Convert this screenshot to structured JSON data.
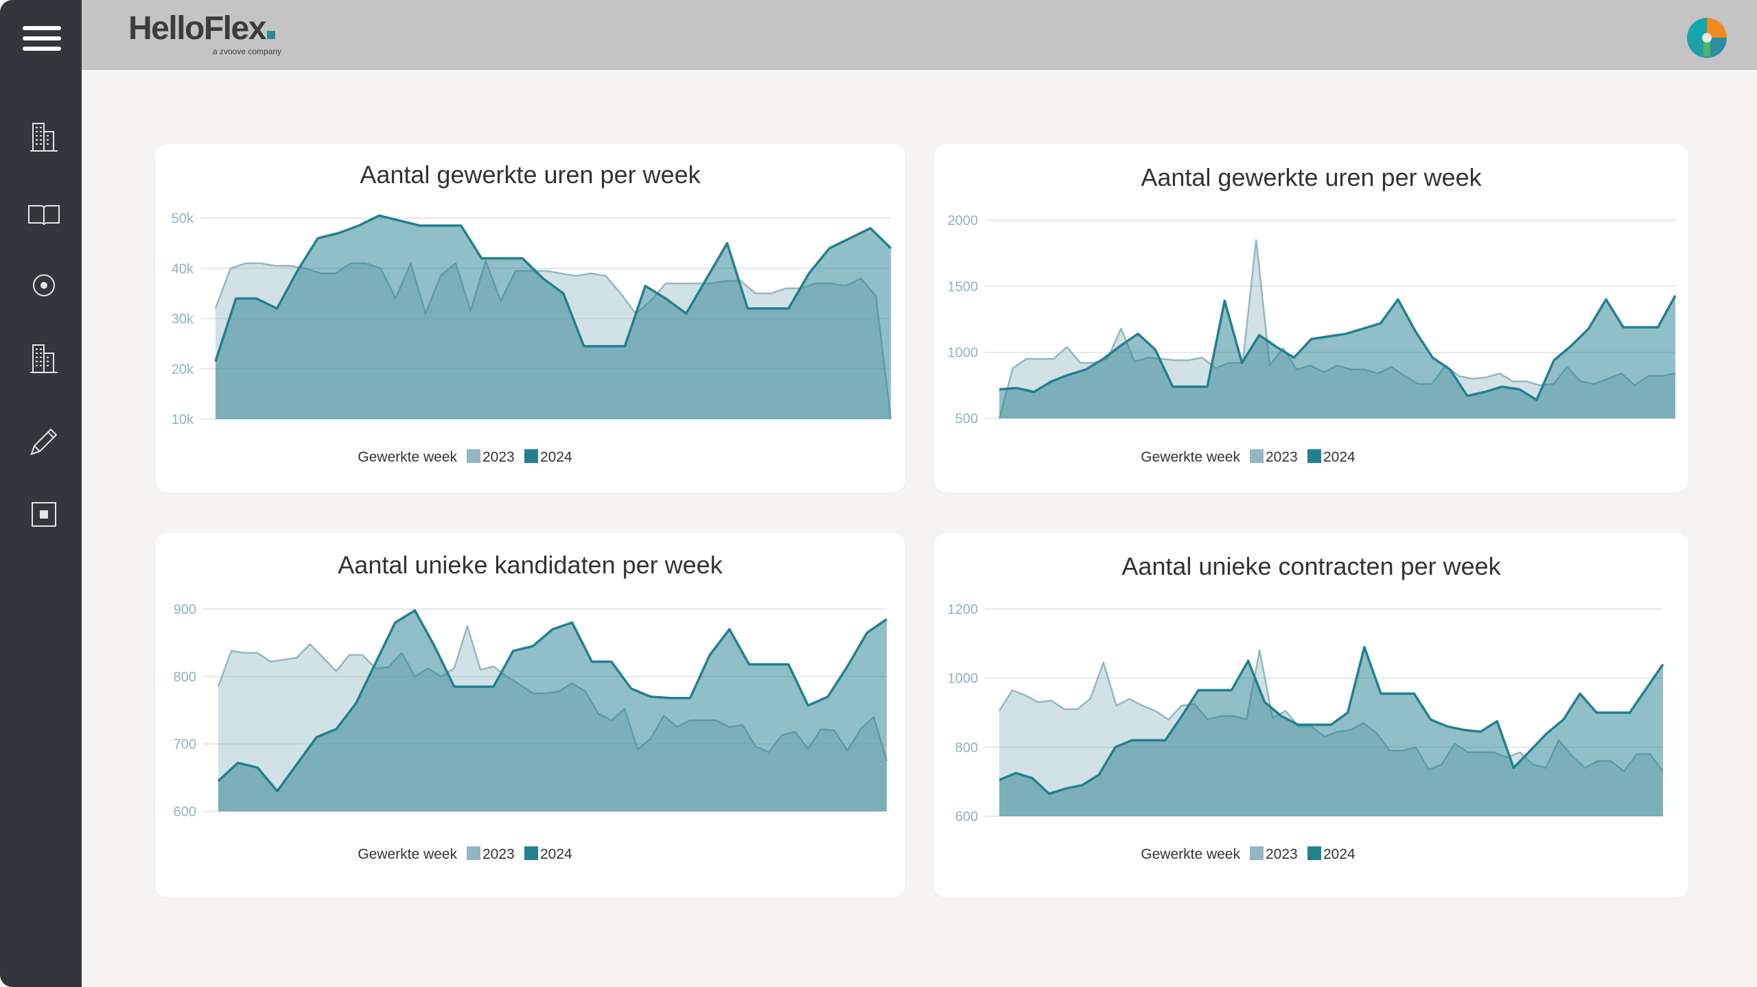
{
  "app": {
    "logo_text": "HelloFlex",
    "logo_tagline": "a zvoove company"
  },
  "sidebar": {
    "items": [
      {
        "icon": "building-icon"
      },
      {
        "icon": "book-icon"
      },
      {
        "icon": "target-icon"
      },
      {
        "icon": "building-icon"
      },
      {
        "icon": "pencil-icon"
      },
      {
        "icon": "square-icon"
      }
    ]
  },
  "colors": {
    "series_2023": "#93b7c2",
    "series_2024": "#23808f",
    "grid": "#d6e2e6",
    "axis_text": "#8fb3c0"
  },
  "chart_data": [
    {
      "type": "area",
      "title": "Aantal gewerkte uren per week",
      "xlabel": "Gewerkte week",
      "ylim": [
        10000,
        50000
      ],
      "yticks": [
        10000,
        20000,
        30000,
        40000,
        50000
      ],
      "ytick_labels": [
        "10k",
        "20k",
        "30k",
        "40k",
        "50k"
      ],
      "series": [
        {
          "name": "2023",
          "values": [
            32000,
            40000,
            41000,
            41000,
            40500,
            40500,
            40000,
            39000,
            39000,
            41000,
            41000,
            40000,
            34000,
            41000,
            31000,
            38500,
            41000,
            31500,
            41500,
            33500,
            39500,
            39500,
            39500,
            39000,
            38500,
            39000,
            38500,
            35000,
            31000,
            33500,
            37000,
            37000,
            37000,
            37000,
            37500,
            37500,
            35000,
            35000,
            36000,
            36000,
            37000,
            37000,
            36500,
            38000,
            34500,
            10000
          ]
        },
        {
          "name": "2024",
          "values": [
            21500,
            34000,
            34000,
            32000,
            39500,
            46000,
            47000,
            48500,
            50500,
            49500,
            48500,
            48500,
            48500,
            42000,
            42000,
            42000,
            38000,
            35000,
            24500,
            24500,
            24500,
            36500,
            34000,
            31000,
            38000,
            45000,
            32000,
            32000,
            32000,
            39000,
            44000,
            46000,
            48000,
            44000
          ]
        }
      ]
    },
    {
      "type": "area",
      "title": "Aantal gewerkte uren per week",
      "xlabel": "Gewerkte week",
      "ylim": [
        500,
        2000
      ],
      "yticks": [
        500,
        1000,
        1500,
        2000
      ],
      "ytick_labels": [
        "500",
        "1000",
        "1500",
        "2000"
      ],
      "series": [
        {
          "name": "2023",
          "values": [
            500,
            880,
            950,
            950,
            950,
            1040,
            920,
            920,
            950,
            1180,
            930,
            960,
            950,
            940,
            940,
            960,
            880,
            920,
            920,
            1850,
            900,
            1030,
            870,
            900,
            850,
            900,
            870,
            870,
            840,
            890,
            820,
            760,
            760,
            900,
            820,
            800,
            810,
            840,
            780,
            780,
            750,
            760,
            890,
            780,
            760,
            800,
            840,
            750,
            820,
            820,
            840
          ]
        },
        {
          "name": "2024",
          "values": [
            720,
            730,
            700,
            780,
            830,
            870,
            950,
            1050,
            1140,
            1020,
            740,
            740,
            740,
            1390,
            920,
            1130,
            1040,
            960,
            1100,
            1120,
            1140,
            1180,
            1220,
            1400,
            1160,
            960,
            870,
            670,
            700,
            740,
            720,
            640,
            940,
            1050,
            1180,
            1400,
            1190,
            1190,
            1190,
            1430
          ]
        }
      ]
    },
    {
      "type": "area",
      "title": "Aantal unieke kandidaten per week",
      "xlabel": "Gewerkte week",
      "ylim": [
        600,
        900
      ],
      "yticks": [
        600,
        700,
        800,
        900
      ],
      "ytick_labels": [
        "600",
        "700",
        "800",
        "900"
      ],
      "series": [
        {
          "name": "2023",
          "values": [
            785,
            838,
            835,
            835,
            822,
            825,
            828,
            848,
            828,
            808,
            832,
            832,
            812,
            814,
            835,
            800,
            812,
            800,
            812,
            875,
            810,
            815,
            800,
            788,
            775,
            775,
            778,
            790,
            778,
            745,
            735,
            752,
            692,
            708,
            742,
            725,
            735,
            735,
            735,
            725,
            728,
            696,
            688,
            713,
            718,
            693,
            722,
            720,
            690,
            722,
            740,
            675
          ]
        },
        {
          "name": "2024",
          "values": [
            645,
            672,
            665,
            630,
            670,
            710,
            722,
            760,
            820,
            880,
            898,
            845,
            785,
            785,
            785,
            838,
            845,
            870,
            880,
            822,
            822,
            782,
            770,
            768,
            768,
            832,
            870,
            818,
            818,
            818,
            757,
            770,
            815,
            865,
            885
          ]
        }
      ]
    },
    {
      "type": "area",
      "title": "Aantal unieke contracten per week",
      "xlabel": "Gewerkte week",
      "ylim": [
        600,
        1200
      ],
      "yticks": [
        600,
        800,
        1000,
        1200
      ],
      "ytick_labels": [
        "600",
        "800",
        "1000",
        "1200"
      ],
      "series": [
        {
          "name": "2023",
          "values": [
            905,
            965,
            950,
            930,
            935,
            910,
            910,
            940,
            1045,
            920,
            940,
            920,
            905,
            880,
            920,
            925,
            880,
            890,
            890,
            880,
            1080,
            885,
            905,
            860,
            860,
            830,
            845,
            850,
            870,
            840,
            790,
            790,
            800,
            735,
            750,
            810,
            785,
            785,
            785,
            770,
            785,
            750,
            740,
            820,
            775,
            740,
            760,
            760,
            730,
            780,
            780,
            730
          ]
        },
        {
          "name": "2024",
          "values": [
            705,
            725,
            710,
            665,
            680,
            690,
            720,
            800,
            820,
            820,
            820,
            890,
            965,
            965,
            965,
            1050,
            930,
            890,
            865,
            865,
            865,
            900,
            1090,
            955,
            955,
            955,
            880,
            860,
            850,
            845,
            875,
            740,
            790,
            840,
            880,
            955,
            900,
            900,
            900,
            970,
            1040
          ]
        }
      ]
    }
  ]
}
